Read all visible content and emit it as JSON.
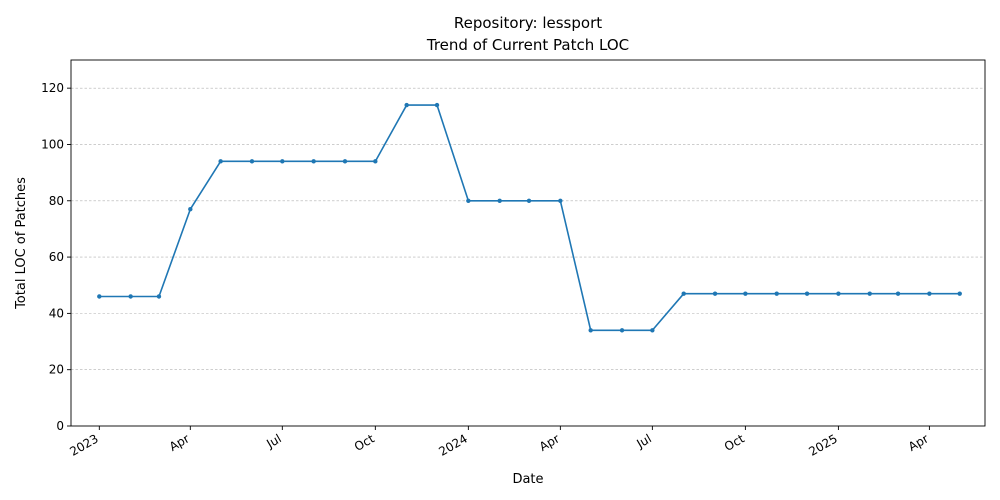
{
  "chart_data": {
    "type": "line",
    "title": "Repository: lessport",
    "subtitle": "Trend of Current Patch LOC",
    "xlabel": "Date",
    "ylabel": "Total LOC of Patches",
    "ylim": [
      0,
      130
    ],
    "yticks": [
      0,
      20,
      40,
      60,
      80,
      100,
      120
    ],
    "xlim": [
      "2022-12-04",
      "2025-05-26"
    ],
    "xticks": [
      {
        "date": "2023-01-01",
        "label": "2023"
      },
      {
        "date": "2023-04-01",
        "label": "Apr"
      },
      {
        "date": "2023-07-01",
        "label": "Jul"
      },
      {
        "date": "2023-10-01",
        "label": "Oct"
      },
      {
        "date": "2024-01-01",
        "label": "2024"
      },
      {
        "date": "2024-04-01",
        "label": "Apr"
      },
      {
        "date": "2024-07-01",
        "label": "Jul"
      },
      {
        "date": "2024-10-01",
        "label": "Oct"
      },
      {
        "date": "2025-01-01",
        "label": "2025"
      },
      {
        "date": "2025-04-01",
        "label": "Apr"
      }
    ],
    "grid": "y-only",
    "color": "#1f77b4",
    "series": [
      {
        "x": [
          "2023-01-01",
          "2023-02-01",
          "2023-03-01",
          "2023-04-01",
          "2023-05-01",
          "2023-06-01",
          "2023-07-01",
          "2023-08-01",
          "2023-09-01",
          "2023-10-01",
          "2023-11-01",
          "2023-12-01",
          "2024-01-01",
          "2024-02-01",
          "2024-03-01",
          "2024-04-01",
          "2024-05-01",
          "2024-06-01",
          "2024-07-01",
          "2024-08-01",
          "2024-09-01",
          "2024-10-01",
          "2024-11-01",
          "2024-12-01",
          "2025-01-01",
          "2025-02-01",
          "2025-03-01",
          "2025-04-01",
          "2025-05-01"
        ],
        "y": [
          46,
          46,
          46,
          77,
          94,
          94,
          94,
          94,
          94,
          94,
          114,
          114,
          80,
          80,
          80,
          80,
          34,
          34,
          34,
          47,
          47,
          47,
          47,
          47,
          47,
          47,
          47,
          47,
          47
        ]
      }
    ]
  }
}
